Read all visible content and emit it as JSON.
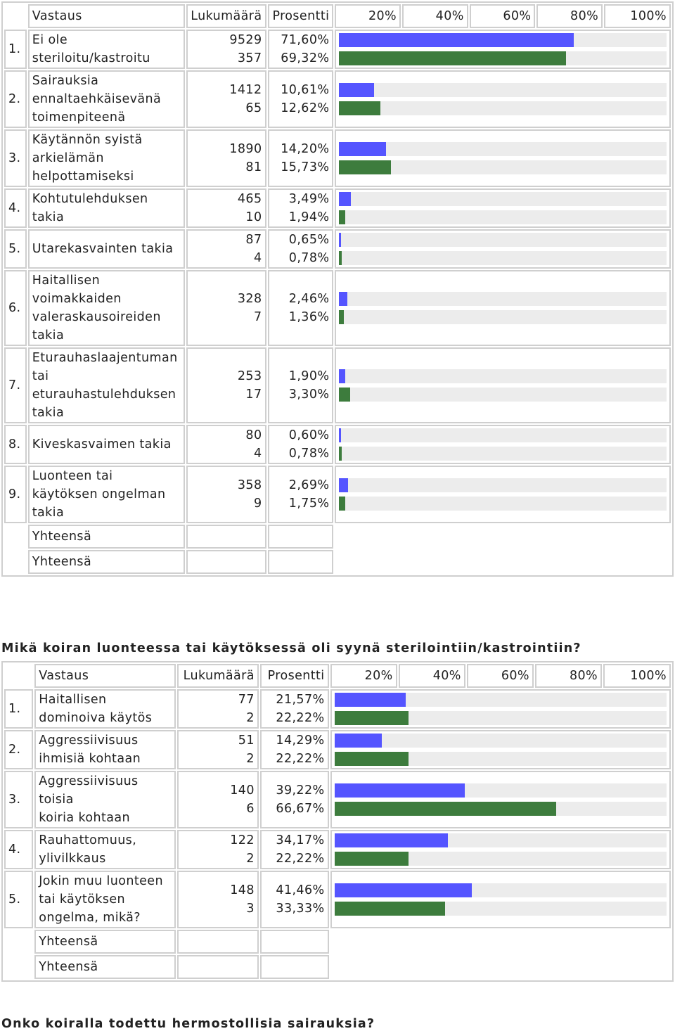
{
  "colors": {
    "series_a": "#5555ff",
    "series_b": "#3d7c3d",
    "track": "#ececec"
  },
  "table1": {
    "headers": {
      "answer": "Vastaus",
      "count": "Lukumäärä",
      "percent": "Prosentti",
      "p20": "20%",
      "p40": "40%",
      "p60": "60%",
      "p80": "80%",
      "p100": "100%"
    },
    "rows": [
      {
        "nr": "1.",
        "label_lines": [
          "Ei ole",
          "steriloitu/kastroitu"
        ],
        "counts": [
          "9529",
          "357"
        ],
        "percents": [
          "71,60%",
          "69,32%"
        ],
        "values": [
          71.6,
          69.32
        ]
      },
      {
        "nr": "2.",
        "label_lines": [
          "Sairauksia",
          "ennaltaehkäisevänä",
          "toimenpiteenä"
        ],
        "counts": [
          "1412",
          "65"
        ],
        "percents": [
          "10,61%",
          "12,62%"
        ],
        "values": [
          10.61,
          12.62
        ]
      },
      {
        "nr": "3.",
        "label_lines": [
          "Käytännön syistä",
          "arkielämän",
          "helpottamiseksi"
        ],
        "counts": [
          "1890",
          "81"
        ],
        "percents": [
          "14,20%",
          "15,73%"
        ],
        "values": [
          14.2,
          15.73
        ]
      },
      {
        "nr": "4.",
        "label_lines": [
          "Kohtutulehduksen",
          "takia"
        ],
        "counts": [
          "465",
          "10"
        ],
        "percents": [
          "3,49%",
          "1,94%"
        ],
        "values": [
          3.49,
          1.94
        ]
      },
      {
        "nr": "5.",
        "label_lines": [
          "Utarekasvainten takia"
        ],
        "counts": [
          "87",
          "4"
        ],
        "percents": [
          "0,65%",
          "0,78%"
        ],
        "values": [
          0.65,
          0.78
        ]
      },
      {
        "nr": "6.",
        "label_lines": [
          "Haitallisen",
          "voimakkaiden",
          "valeraskausoireiden",
          "takia"
        ],
        "counts": [
          "328",
          "7"
        ],
        "percents": [
          "2,46%",
          "1,36%"
        ],
        "values": [
          2.46,
          1.36
        ]
      },
      {
        "nr": "7.",
        "label_lines": [
          "Eturauhaslaajentuman",
          "tai",
          "eturauhastulehduksen",
          "takia"
        ],
        "counts": [
          "253",
          "17"
        ],
        "percents": [
          "1,90%",
          "3,30%"
        ],
        "values": [
          1.9,
          3.3
        ]
      },
      {
        "nr": "8.",
        "label_lines": [
          "Kiveskasvaimen takia"
        ],
        "counts": [
          "80",
          "4"
        ],
        "percents": [
          "0,60%",
          "0,78%"
        ],
        "values": [
          0.6,
          0.78
        ]
      },
      {
        "nr": "9.",
        "label_lines": [
          "Luonteen tai",
          "käytöksen ongelman",
          "takia"
        ],
        "counts": [
          "358",
          "9"
        ],
        "percents": [
          "2,69%",
          "1,75%"
        ],
        "values": [
          2.69,
          1.75
        ]
      }
    ],
    "totals": [
      "Yhteensä",
      "Yhteensä"
    ]
  },
  "question2": "Mikä koiran luonteessa tai käytöksessä oli syynä sterilointiin/kastrointiin?",
  "table2": {
    "headers": {
      "answer": "Vastaus",
      "count": "Lukumäärä",
      "percent": "Prosentti",
      "p20": "20%",
      "p40": "40%",
      "p60": "60%",
      "p80": "80%",
      "p100": "100%"
    },
    "rows": [
      {
        "nr": "1.",
        "label_lines": [
          "Haitallisen",
          "dominoiva käytös"
        ],
        "counts": [
          "77",
          "2"
        ],
        "percents": [
          "21,57%",
          "22,22%"
        ],
        "values": [
          21.57,
          22.22
        ]
      },
      {
        "nr": "2.",
        "label_lines": [
          "Aggressiivisuus",
          "ihmisiä kohtaan"
        ],
        "counts": [
          "51",
          "2"
        ],
        "percents": [
          "14,29%",
          "22,22%"
        ],
        "values": [
          14.29,
          22.22
        ]
      },
      {
        "nr": "3.",
        "label_lines": [
          "Aggressiivisuus toisia",
          "koiria kohtaan"
        ],
        "counts": [
          "140",
          "6"
        ],
        "percents": [
          "39,22%",
          "66,67%"
        ],
        "values": [
          39.22,
          66.67
        ]
      },
      {
        "nr": "4.",
        "label_lines": [
          "Rauhattomuus,",
          "ylivilkkaus"
        ],
        "counts": [
          "122",
          "2"
        ],
        "percents": [
          "34,17%",
          "22,22%"
        ],
        "values": [
          34.17,
          22.22
        ]
      },
      {
        "nr": "5.",
        "label_lines": [
          "Jokin muu luonteen",
          "tai käytöksen",
          "ongelma, mikä?"
        ],
        "counts": [
          "148",
          "3"
        ],
        "percents": [
          "41,46%",
          "33,33%"
        ],
        "values": [
          41.46,
          33.33
        ]
      }
    ],
    "totals": [
      "Yhteensä",
      "Yhteensä"
    ]
  },
  "question3": "Onko koiralla todettu hermostollisia sairauksia?"
}
